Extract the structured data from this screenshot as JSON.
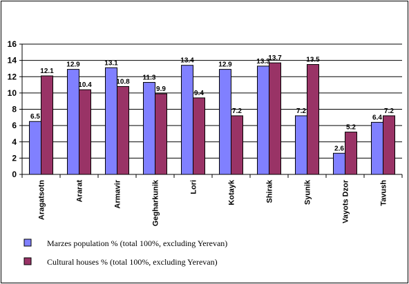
{
  "chart_data": {
    "type": "bar",
    "categories": [
      "Aragatsotn",
      "Ararat",
      "Armavir",
      "Gegharkunik",
      "Lori",
      "Kotayk",
      "Shirak",
      "Syunik",
      "Vayots Dzor",
      "Tavush"
    ],
    "series": [
      {
        "name": "Marzes population % (total 100%, excluding Yerevan)",
        "color": "#8080ff",
        "values": [
          6.5,
          12.9,
          13.1,
          11.3,
          13.4,
          12.9,
          13.3,
          7.2,
          2.6,
          6.4
        ]
      },
      {
        "name": "Cultural houses % (total 100%, excluding Yerevan)",
        "color": "#993366",
        "values": [
          12.1,
          10.4,
          10.8,
          9.9,
          9.4,
          7.2,
          13.7,
          13.5,
          5.2,
          7.2
        ]
      }
    ],
    "ylim": [
      0,
      16
    ],
    "yticks": [
      "0",
      "2",
      "4",
      "6",
      "8",
      "10",
      "12",
      "14",
      "16"
    ],
    "grid": true,
    "legend_position": "bottom-left"
  }
}
